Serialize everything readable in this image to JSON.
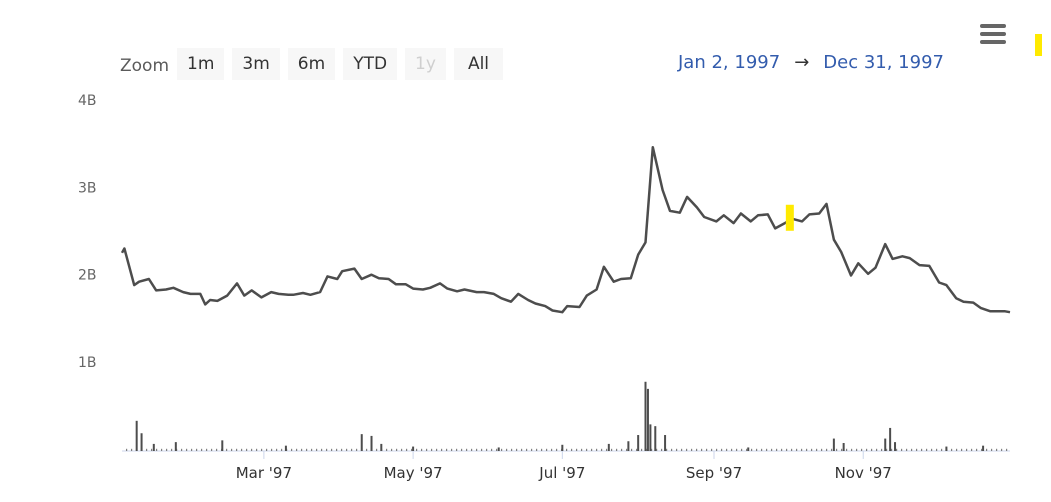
{
  "toolbar": {
    "zoom_label": "Zoom",
    "buttons": [
      "1m",
      "3m",
      "6m",
      "YTD",
      "1y",
      "All"
    ],
    "disabled_button": "1y"
  },
  "range": {
    "from": "Jan 2, 1997",
    "arrow": "→",
    "to": "Dec 31, 1997"
  },
  "colors": {
    "line": "#4d4d4d",
    "volume": "#4d4d4d",
    "highlight": "#ffea00",
    "range_text": "#335cad"
  },
  "chart_data": {
    "type": "line",
    "title": "",
    "xlabel": "",
    "ylabel": "",
    "ylim": [
      0,
      4000000000
    ],
    "y_ticks": [
      "1B",
      "2B",
      "3B",
      "4B"
    ],
    "y_tick_values": [
      1000000000,
      2000000000,
      3000000000,
      4000000000
    ],
    "x_range": [
      "1997-01-02",
      "1997-12-31"
    ],
    "x_ticks": [
      "Mar '97",
      "May '97",
      "Jul '97",
      "Sep '97",
      "Nov '97"
    ],
    "x_tick_dates": [
      "1997-03-01",
      "1997-05-01",
      "1997-07-01",
      "1997-09-01",
      "1997-11-01"
    ],
    "series": [
      {
        "type": "line",
        "x": [
          "1997-01-02",
          "1997-01-03",
          "1997-01-07",
          "1997-01-09",
          "1997-01-13",
          "1997-01-16",
          "1997-01-20",
          "1997-01-23",
          "1997-01-27",
          "1997-01-30",
          "1997-02-03",
          "1997-02-05",
          "1997-02-07",
          "1997-02-10",
          "1997-02-14",
          "1997-02-18",
          "1997-02-21",
          "1997-02-24",
          "1997-02-28",
          "1997-03-04",
          "1997-03-07",
          "1997-03-11",
          "1997-03-13",
          "1997-03-17",
          "1997-03-20",
          "1997-03-24",
          "1997-03-27",
          "1997-03-31",
          "1997-04-02",
          "1997-04-07",
          "1997-04-10",
          "1997-04-14",
          "1997-04-17",
          "1997-04-21",
          "1997-04-24",
          "1997-04-28",
          "1997-05-01",
          "1997-05-05",
          "1997-05-08",
          "1997-05-12",
          "1997-05-15",
          "1997-05-19",
          "1997-05-22",
          "1997-05-27",
          "1997-05-30",
          "1997-06-03",
          "1997-06-06",
          "1997-06-10",
          "1997-06-13",
          "1997-06-17",
          "1997-06-20",
          "1997-06-24",
          "1997-06-27",
          "1997-07-01",
          "1997-07-03",
          "1997-07-08",
          "1997-07-11",
          "1997-07-15",
          "1997-07-18",
          "1997-07-22",
          "1997-07-25",
          "1997-07-29",
          "1997-08-01",
          "1997-08-04",
          "1997-08-07",
          "1997-08-11",
          "1997-08-14",
          "1997-08-18",
          "1997-08-21",
          "1997-08-25",
          "1997-08-28",
          "1997-09-02",
          "1997-09-05",
          "1997-09-09",
          "1997-09-12",
          "1997-09-16",
          "1997-09-19",
          "1997-09-23",
          "1997-09-26",
          "1997-09-30",
          "1997-10-03",
          "1997-10-07",
          "1997-10-10",
          "1997-10-14",
          "1997-10-17",
          "1997-10-20",
          "1997-10-23",
          "1997-10-27",
          "1997-10-30",
          "1997-11-03",
          "1997-11-06",
          "1997-11-10",
          "1997-11-13",
          "1997-11-17",
          "1997-11-20",
          "1997-11-24",
          "1997-11-28",
          "1997-12-02",
          "1997-12-05",
          "1997-12-09",
          "1997-12-12",
          "1997-12-16",
          "1997-12-19",
          "1997-12-23",
          "1997-12-29",
          "1997-12-31"
        ],
        "values": [
          2250000000,
          2300000000,
          1880000000,
          1920000000,
          1950000000,
          1820000000,
          1830000000,
          1850000000,
          1800000000,
          1780000000,
          1780000000,
          1660000000,
          1710000000,
          1700000000,
          1760000000,
          1900000000,
          1760000000,
          1820000000,
          1740000000,
          1800000000,
          1780000000,
          1770000000,
          1770000000,
          1790000000,
          1770000000,
          1800000000,
          1980000000,
          1950000000,
          2040000000,
          2070000000,
          1950000000,
          2000000000,
          1960000000,
          1950000000,
          1890000000,
          1890000000,
          1840000000,
          1830000000,
          1850000000,
          1900000000,
          1840000000,
          1810000000,
          1830000000,
          1800000000,
          1800000000,
          1780000000,
          1730000000,
          1690000000,
          1780000000,
          1710000000,
          1670000000,
          1640000000,
          1590000000,
          1570000000,
          1640000000,
          1630000000,
          1760000000,
          1830000000,
          2090000000,
          1920000000,
          1950000000,
          1960000000,
          2230000000,
          2370000000,
          3460000000,
          2970000000,
          2730000000,
          2710000000,
          2890000000,
          2770000000,
          2660000000,
          2610000000,
          2680000000,
          2590000000,
          2700000000,
          2610000000,
          2680000000,
          2690000000,
          2530000000,
          2590000000,
          2640000000,
          2610000000,
          2690000000,
          2700000000,
          2810000000,
          2400000000,
          2260000000,
          1990000000,
          2130000000,
          2010000000,
          2080000000,
          2350000000,
          2180000000,
          2210000000,
          2190000000,
          2110000000,
          2100000000,
          1910000000,
          1880000000,
          1730000000,
          1690000000,
          1680000000,
          1620000000,
          1580000000,
          1580000000,
          1570000000
        ]
      },
      {
        "type": "column",
        "x": [
          "1997-01-08",
          "1997-01-10",
          "1997-01-15",
          "1997-01-24",
          "1997-02-12",
          "1997-03-10",
          "1997-04-10",
          "1997-04-14",
          "1997-04-18",
          "1997-05-01",
          "1997-06-05",
          "1997-07-01",
          "1997-07-20",
          "1997-07-28",
          "1997-08-01",
          "1997-08-04",
          "1997-08-05",
          "1997-08-06",
          "1997-08-08",
          "1997-08-12",
          "1997-09-15",
          "1997-10-20",
          "1997-10-24",
          "1997-11-10",
          "1997-11-12",
          "1997-11-14",
          "1997-12-05",
          "1997-12-20"
        ],
        "values": [
          340000000,
          200000000,
          80000000,
          100000000,
          120000000,
          60000000,
          190000000,
          170000000,
          80000000,
          50000000,
          40000000,
          70000000,
          80000000,
          110000000,
          180000000,
          780000000,
          700000000,
          300000000,
          280000000,
          180000000,
          40000000,
          140000000,
          90000000,
          140000000,
          260000000,
          100000000,
          50000000,
          60000000
        ]
      }
    ],
    "legend": "none",
    "grid": "none",
    "highlight": {
      "series": 0,
      "date": "1997-10-02"
    }
  }
}
